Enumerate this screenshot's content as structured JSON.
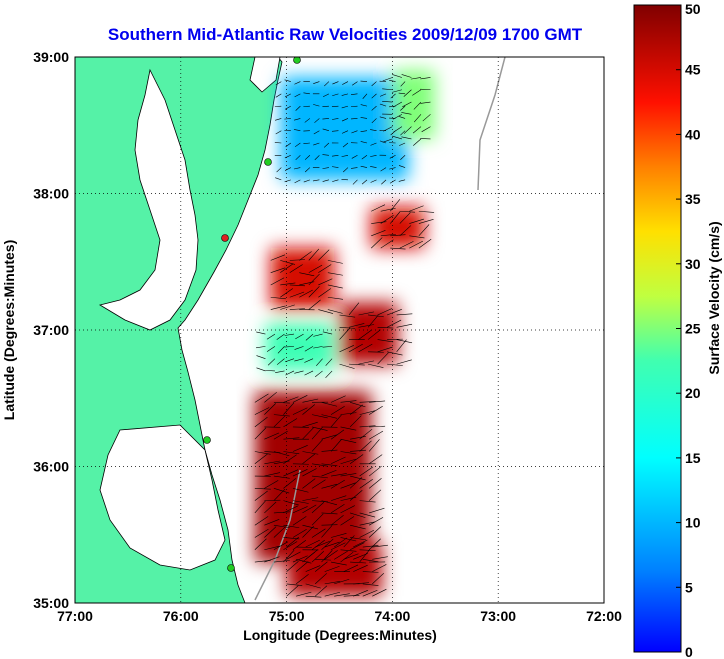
{
  "chart_data": {
    "type": "heatmap",
    "title": "Southern Mid-Atlantic Raw Velocities 2009/12/09 1700 GMT",
    "xlabel": "Longitude (Degrees:Minutes)",
    "ylabel": "Latitude (Degrees:Minutes)",
    "xlim": [
      -77,
      -72
    ],
    "ylim": [
      35,
      39
    ],
    "x_ticks": [
      {
        "value": -77,
        "label": "77:00"
      },
      {
        "value": -76,
        "label": "76:00"
      },
      {
        "value": -75,
        "label": "75:00"
      },
      {
        "value": -74,
        "label": "74:00"
      },
      {
        "value": -73,
        "label": "73:00"
      },
      {
        "value": -72,
        "label": "72:00"
      }
    ],
    "y_ticks": [
      {
        "value": 35,
        "label": "35:00"
      },
      {
        "value": 36,
        "label": "36:00"
      },
      {
        "value": 37,
        "label": "37:00"
      },
      {
        "value": 38,
        "label": "38:00"
      },
      {
        "value": 39,
        "label": "39:00"
      }
    ],
    "grid": true,
    "colorbar": {
      "label": "Surface Velocity (cm/s)",
      "range": [
        0,
        50
      ],
      "ticks": [
        "0",
        "5",
        "10",
        "15",
        "20",
        "25",
        "30",
        "35",
        "40",
        "45",
        "50"
      ],
      "colormap": "jet"
    },
    "velocity_regions": [
      {
        "lon": [
          -75.05,
          -73.85
        ],
        "lat": [
          38.1,
          38.85
        ],
        "speed": 10
      },
      {
        "lon": [
          -74.0,
          -73.6
        ],
        "lat": [
          38.4,
          38.9
        ],
        "speed": 25
      },
      {
        "lon": [
          -74.2,
          -73.7
        ],
        "lat": [
          37.6,
          37.9
        ],
        "speed": 45
      },
      {
        "lon": [
          -75.15,
          -74.55
        ],
        "lat": [
          37.15,
          37.6
        ],
        "speed": 45
      },
      {
        "lon": [
          -74.5,
          -73.95
        ],
        "lat": [
          36.75,
          37.2
        ],
        "speed": 47
      },
      {
        "lon": [
          -75.2,
          -74.55
        ],
        "lat": [
          36.7,
          37.05
        ],
        "speed": 22
      },
      {
        "lon": [
          -75.3,
          -74.2
        ],
        "lat": [
          35.3,
          36.55
        ],
        "speed": 48
      },
      {
        "lon": [
          -75.0,
          -74.1
        ],
        "lat": [
          35.05,
          35.45
        ],
        "speed": 47
      }
    ]
  },
  "colors": {
    "land": "#55f2a7",
    "water": "#ffffff",
    "title_text": "#0000ee",
    "coast_outline": "#000000",
    "station_green": "#22cc22",
    "station_red": "#dd2222"
  }
}
